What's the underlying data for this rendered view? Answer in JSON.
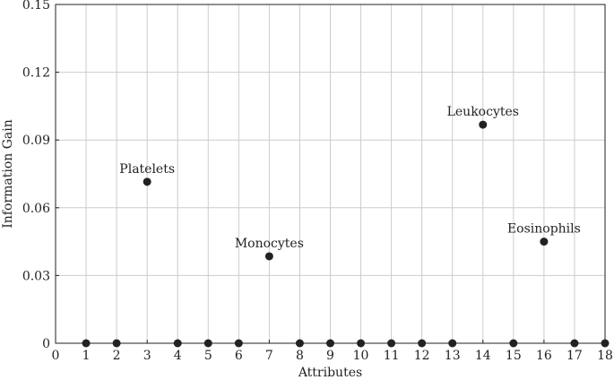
{
  "chart_data": {
    "type": "scatter",
    "xlabel": "Attributes",
    "ylabel": "Information Gain",
    "xlim": [
      0,
      18
    ],
    "ylim": [
      0,
      0.15
    ],
    "xticks": [
      "0",
      "1",
      "2",
      "3",
      "4",
      "5",
      "6",
      "7",
      "8",
      "9",
      "10",
      "11",
      "12",
      "13",
      "14",
      "15",
      "16",
      "17",
      "18"
    ],
    "yticks": [
      "0",
      "0.03",
      "0.06",
      "0.09",
      "0.12",
      "0.15"
    ],
    "grid": true,
    "marker_color": "#222222",
    "points": [
      {
        "x": 1,
        "y": 0,
        "label": ""
      },
      {
        "x": 2,
        "y": 0,
        "label": ""
      },
      {
        "x": 3,
        "y": 0.0715,
        "label": "Platelets"
      },
      {
        "x": 4,
        "y": 0,
        "label": ""
      },
      {
        "x": 5,
        "y": 0,
        "label": ""
      },
      {
        "x": 6,
        "y": 0,
        "label": ""
      },
      {
        "x": 7,
        "y": 0.0385,
        "label": "Monocytes"
      },
      {
        "x": 8,
        "y": 0,
        "label": ""
      },
      {
        "x": 9,
        "y": 0,
        "label": ""
      },
      {
        "x": 10,
        "y": 0,
        "label": ""
      },
      {
        "x": 11,
        "y": 0,
        "label": ""
      },
      {
        "x": 12,
        "y": 0,
        "label": ""
      },
      {
        "x": 13,
        "y": 0,
        "label": ""
      },
      {
        "x": 14,
        "y": 0.0968,
        "label": "Leukocytes"
      },
      {
        "x": 15,
        "y": 0,
        "label": ""
      },
      {
        "x": 16,
        "y": 0.045,
        "label": "Eosinophils"
      },
      {
        "x": 17,
        "y": 0,
        "label": ""
      },
      {
        "x": 18,
        "y": 0,
        "label": ""
      }
    ]
  }
}
